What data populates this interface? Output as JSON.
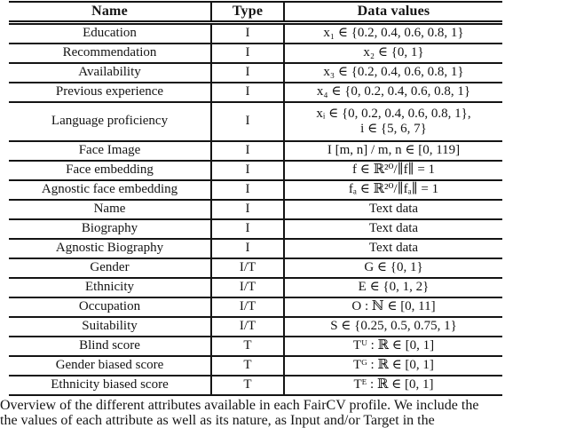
{
  "table": {
    "headers": {
      "name": "Name",
      "type": "Type",
      "values": "Data values"
    },
    "rows": [
      {
        "name": "Education",
        "type": "I",
        "value": "x₁ ∈ {0.2, 0.4, 0.6, 0.8, 1}"
      },
      {
        "name": "Recommendation",
        "type": "I",
        "value": "x₂ ∈ {0, 1}"
      },
      {
        "name": "Availability",
        "type": "I",
        "value": "x₃ ∈ {0.2, 0.4, 0.6, 0.8, 1}"
      },
      {
        "name": "Previous experience",
        "type": "I",
        "value": "x₄ ∈ {0, 0.2, 0.4, 0.6, 0.8, 1}"
      },
      {
        "name": "Language proficiency",
        "type": "I",
        "value": "xᵢ ∈ {0, 0.2, 0.4, 0.6, 0.8, 1},\ni ∈ {5, 6, 7}"
      },
      {
        "name": "Face Image",
        "type": "I",
        "value": "I [m, n] /  m, n ∈ [0, 119]"
      },
      {
        "name": "Face embedding",
        "type": "I",
        "value": "f ∈ ℝ²⁰/∥f∥ = 1"
      },
      {
        "name": "Agnostic face embedding",
        "type": "I",
        "value": "fₐ ∈ ℝ²⁰/∥fₐ∥ = 1"
      },
      {
        "name": "Name",
        "type": "I",
        "value": "Text data"
      },
      {
        "name": "Biography",
        "type": "I",
        "value": "Text data"
      },
      {
        "name": "Agnostic Biography",
        "type": "I",
        "value": "Text data"
      },
      {
        "name": "Gender",
        "type": "I/T",
        "value": "G ∈ {0, 1}"
      },
      {
        "name": "Ethnicity",
        "type": "I/T",
        "value": "E ∈ {0, 1, 2}"
      },
      {
        "name": "Occupation",
        "type": "I/T",
        "value": "O : ℕ ∈ [0, 11]"
      },
      {
        "name": "Suitability",
        "type": "I/T",
        "value": "S ∈ {0.25, 0.5, 0.75, 1}"
      },
      {
        "name": "Blind score",
        "type": "T",
        "value": "Tᵁ : ℝ ∈ [0, 1]"
      },
      {
        "name": "Gender biased score",
        "type": "T",
        "value": "Tᴳ : ℝ ∈ [0, 1]"
      },
      {
        "name": "Ethnicity biased score",
        "type": "T",
        "value": "Tᴱ : ℝ ∈ [0, 1]"
      }
    ]
  },
  "caption": {
    "line1": "Overview of the different attributes available in each FairCV profile. We include the",
    "line2": "the values of each attribute as well as its nature, as Input and/or Target in the"
  }
}
